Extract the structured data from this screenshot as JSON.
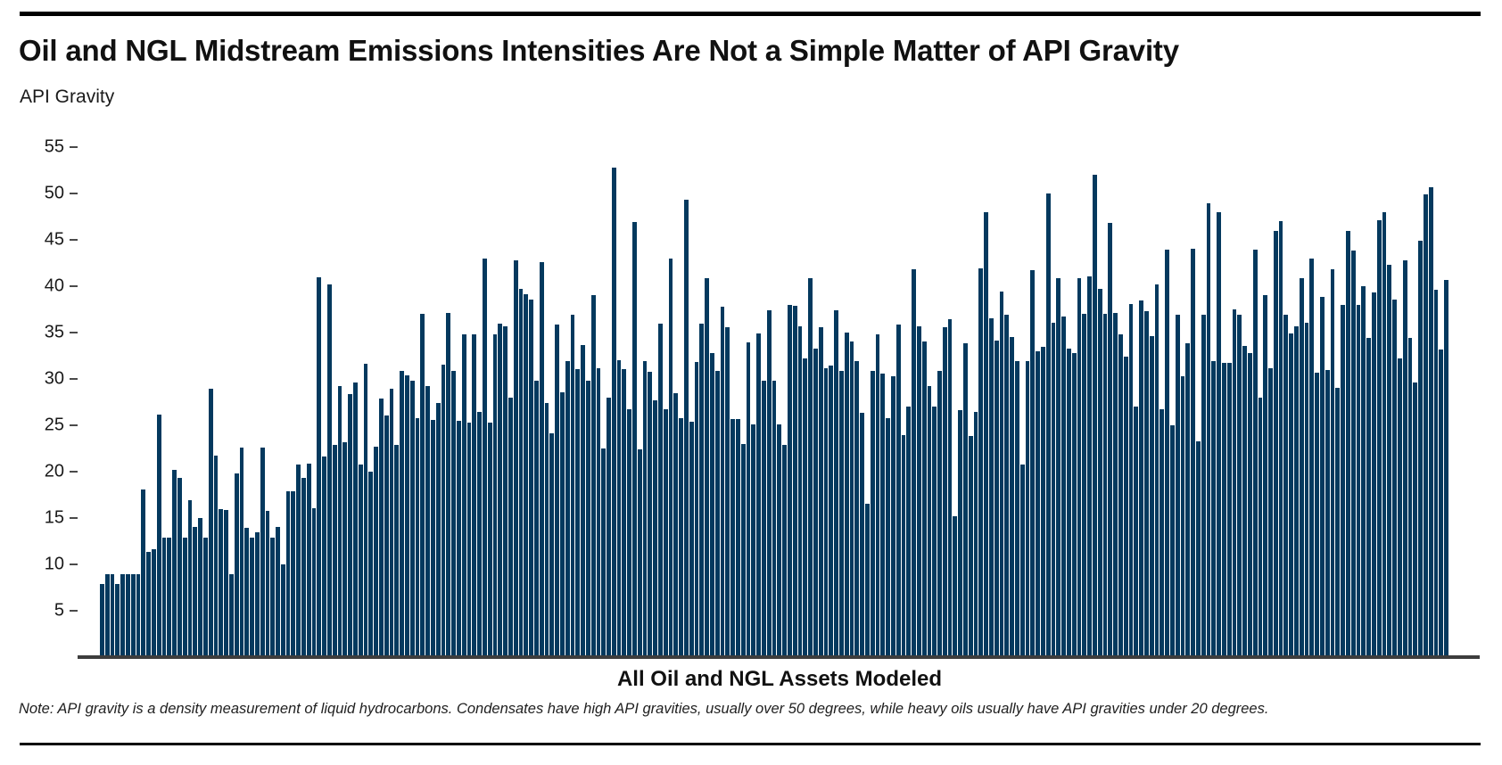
{
  "header": {
    "title": "Oil and NGL Midstream Emissions Intensities Are Not a Simple Matter of API Gravity"
  },
  "footer": {
    "note": "Note: API gravity is a density measurement of liquid hydrocarbons. Condensates have high API gravities, usually over 50 degrees, while heavy oils usually have API gravities under 20 degrees."
  },
  "colors": {
    "bar": "#04395E",
    "axis_line": "#3d3d3d",
    "rule": "#000000",
    "text": "#1a1a1a"
  },
  "chart_data": {
    "type": "bar",
    "title": "Oil and NGL Midstream Emissions Intensities Are Not a Simple Matter of API Gravity",
    "ylabel": "API Gravity",
    "xlabel": "All Oil and NGL Assets Modeled",
    "ylim": [
      0,
      55
    ],
    "yticks": [
      5,
      10,
      15,
      20,
      25,
      30,
      35,
      40,
      45,
      50,
      55
    ],
    "grid": false,
    "legend": "none",
    "series_name": "API gravity per modeled oil and NGL asset (sorted, one bar per asset)",
    "values": [
      7.9,
      8.9,
      8.9,
      7.9,
      8.9,
      8.9,
      8.9,
      8.9,
      18.1,
      11.3,
      11.6,
      26.2,
      12.9,
      12.9,
      20.2,
      19.3,
      12.9,
      16.9,
      14.0,
      15.0,
      12.9,
      28.9,
      21.7,
      16.0,
      15.9,
      8.9,
      19.8,
      22.6,
      13.9,
      12.9,
      13.5,
      22.6,
      15.8,
      12.9,
      14.0,
      10.0,
      17.9,
      17.9,
      20.8,
      19.3,
      20.9,
      16.1,
      41.0,
      21.6,
      40.2,
      22.9,
      29.2,
      23.2,
      28.4,
      29.6,
      20.8,
      31.6,
      20.0,
      22.7,
      27.9,
      26.1,
      28.9,
      22.9,
      30.9,
      30.4,
      29.8,
      25.8,
      37.0,
      29.2,
      25.6,
      27.4,
      31.5,
      37.1,
      30.9,
      25.5,
      34.8,
      25.3,
      34.8,
      26.4,
      43.0,
      25.3,
      34.8,
      36.0,
      35.7,
      28.0,
      42.8,
      39.7,
      39.1,
      38.6,
      29.8,
      42.6,
      27.4,
      24.1,
      35.9,
      28.6,
      31.9,
      36.9,
      31.1,
      33.7,
      29.8,
      39.0,
      31.2,
      22.5,
      28.0,
      52.8,
      32.0,
      31.1,
      26.7,
      46.9,
      22.4,
      31.9,
      30.8,
      27.7,
      36.0,
      26.7,
      43.0,
      28.5,
      25.8,
      49.3,
      25.4,
      31.8,
      36.0,
      40.9,
      32.8,
      30.9,
      37.8,
      35.6,
      25.7,
      25.7,
      23.0,
      33.9,
      25.1,
      34.9,
      29.8,
      37.4,
      29.8,
      25.1,
      22.9,
      38.0,
      37.9,
      35.7,
      32.2,
      40.9,
      33.3,
      35.6,
      31.2,
      31.4,
      37.4,
      30.9,
      35.0,
      34.0,
      31.9,
      26.3,
      16.5,
      30.9,
      34.8,
      30.6,
      25.8,
      30.3,
      35.9,
      23.9,
      27.0,
      41.8,
      35.7,
      34.0,
      29.2,
      27.0,
      30.9,
      35.6,
      36.4,
      15.2,
      26.6,
      33.8,
      23.8,
      26.4,
      41.9,
      48.0,
      36.5,
      34.1,
      39.4,
      36.9,
      34.5,
      31.9,
      20.8,
      31.9,
      41.7,
      33.0,
      33.5,
      50.0,
      36.1,
      40.9,
      36.7,
      33.3,
      32.8,
      40.9,
      37.0,
      41.1,
      52.0,
      39.7,
      37.0,
      46.8,
      37.1,
      34.8,
      32.4,
      38.1,
      27.0,
      38.5,
      37.3,
      34.6,
      40.2,
      26.7,
      43.9,
      25.0,
      36.9,
      30.3,
      33.8,
      44.0,
      23.3,
      36.9,
      48.9,
      31.9,
      48.0,
      31.7,
      31.7,
      37.5,
      36.9,
      33.6,
      32.8,
      43.9,
      28.0,
      39.0,
      31.2,
      46.0,
      47.0,
      36.9,
      34.9,
      35.7,
      40.9,
      36.1,
      43.0,
      30.7,
      38.8,
      31.0,
      41.8,
      29.0,
      38.0,
      46.0,
      43.8,
      38.0,
      40.0,
      34.4,
      39.3,
      47.1,
      48.0,
      42.3,
      38.6,
      32.2,
      42.8,
      34.4,
      29.6,
      44.9,
      49.9,
      50.7,
      39.6,
      33.2,
      40.7
    ]
  }
}
